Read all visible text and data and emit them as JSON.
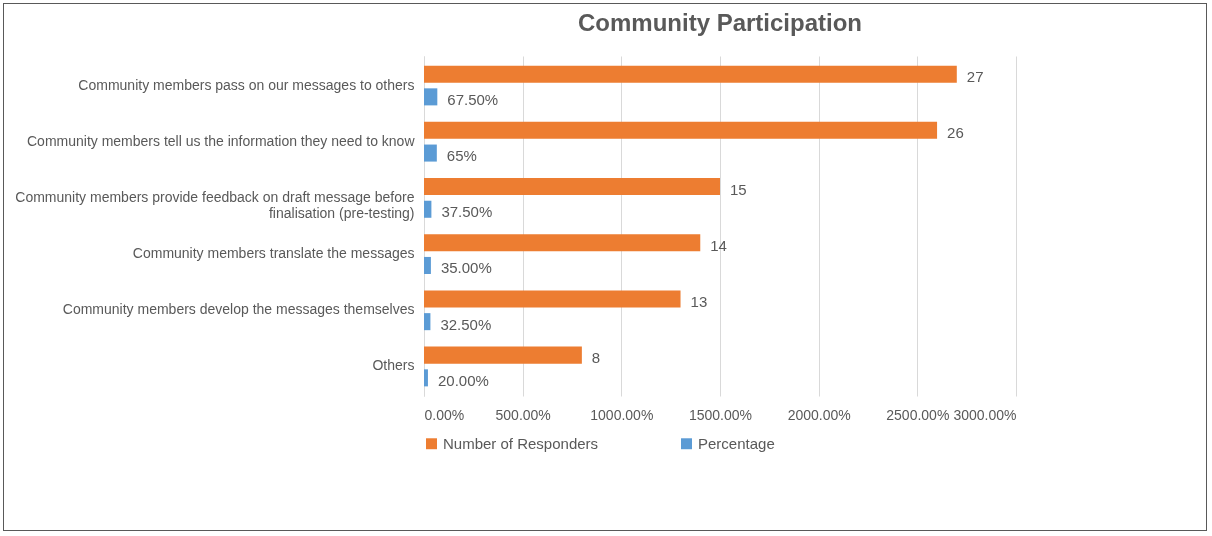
{
  "chart_data": {
    "type": "bar",
    "orientation": "horizontal",
    "title": "Community Participation",
    "categories": [
      "Community members pass on our messages to others",
      "Community members tell us the information they need to know",
      "Community members provide feedback on draft message before finalisation (pre-testing)",
      "Community members translate the messages",
      "Community members develop the messages themselves",
      "Others"
    ],
    "series": [
      {
        "name": "Number of Responders",
        "color": "#ed7d31",
        "values": [
          27,
          26,
          15,
          14,
          13,
          8
        ],
        "value_labels": [
          "27",
          "26",
          "15",
          "14",
          "13",
          "8"
        ]
      },
      {
        "name": "Percentage",
        "color": "#5b9bd5",
        "values": [
          0.675,
          0.65,
          0.375,
          0.35,
          0.325,
          0.2
        ],
        "value_labels": [
          "67.50%",
          "65%",
          "37.50%",
          "35.00%",
          "32.50%",
          "20.00%"
        ]
      }
    ],
    "xlim": [
      0,
      30
    ],
    "xticks": [
      {
        "value": 0,
        "label": "0.00%"
      },
      {
        "value": 5,
        "label": "500.00%"
      },
      {
        "value": 10,
        "label": "1000.00%"
      },
      {
        "value": 15,
        "label": "1500.00%"
      },
      {
        "value": 20,
        "label": "2000.00%"
      },
      {
        "value": 25,
        "label": "2500.00%"
      },
      {
        "value": 30,
        "label": "3000.00%"
      }
    ],
    "grid": "x",
    "legend": "bottom"
  }
}
